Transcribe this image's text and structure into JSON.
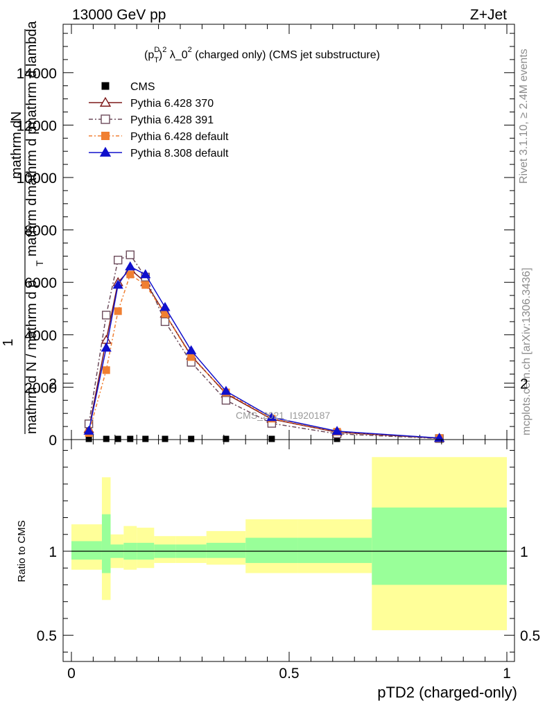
{
  "header": {
    "left": "13000 GeV pp",
    "right": "Z+Jet"
  },
  "side_labels": {
    "rivet": "Rivet 3.1.10, ≥ 2.4M events",
    "mcplots": "mcplots.cern.ch [arXiv:1306.3436]"
  },
  "watermark": "CMS_2021_I1920187",
  "chart_data": [
    {
      "type": "line",
      "title_parts": {
        "p": "(p",
        "sup_d": "D",
        "sub_t": "T",
        "close": ")",
        "sup_2": "2",
        "lambda": " λ_0",
        "sup_2b": "2",
        "rest": " (charged only) (CMS jet substructure)"
      },
      "ylabel_parts": {
        "one": "1",
        "denominator": "mathrm d N / mathrm d p",
        "t": "T",
        "rest": "mathrm d",
        "dn": "mathrm d",
        "n": "N",
        "dpt": "mathrm d p",
        "lambda": "mathrm d lambda"
      },
      "xlim": [
        0,
        1
      ],
      "ylim": [
        0,
        16000
      ],
      "yticks": [
        0,
        2000,
        4000,
        6000,
        8000,
        10000,
        12000,
        14000
      ],
      "ytick_labels": [
        "0",
        "2000",
        "4000",
        "6000",
        "8000",
        "10000",
        "12000",
        "14000"
      ],
      "legend_position": "top-left",
      "series": [
        {
          "name": "CMS",
          "color": "#000000",
          "marker": "square-filled",
          "x": [
            0.04,
            0.08,
            0.107,
            0.135,
            0.17,
            0.215,
            0.275,
            0.355,
            0.46,
            0.61,
            0.845
          ],
          "y": [
            0,
            0,
            0,
            0,
            0,
            0,
            0,
            0,
            0,
            0,
            0
          ]
        },
        {
          "name": "Pythia 6.428 370",
          "color": "#7d1818",
          "marker": "triangle-open",
          "dash": "",
          "x": [
            0.04,
            0.08,
            0.107,
            0.135,
            0.17,
            0.215,
            0.275,
            0.355,
            0.46,
            0.61,
            0.845
          ],
          "y": [
            400,
            3800,
            6000,
            6500,
            6000,
            4800,
            3200,
            1750,
            780,
            280,
            50
          ]
        },
        {
          "name": "Pythia 6.428 391",
          "color": "#6b4a5a",
          "marker": "square-open",
          "dash": "6,3,2,3",
          "x": [
            0.04,
            0.08,
            0.107,
            0.135,
            0.17,
            0.215,
            0.275,
            0.355,
            0.46,
            0.61,
            0.845
          ],
          "y": [
            600,
            4750,
            6850,
            7050,
            6200,
            4500,
            2950,
            1500,
            620,
            220,
            40
          ]
        },
        {
          "name": "Pythia 6.428 default",
          "color": "#f07f32",
          "marker": "square-filled",
          "dash": "5,3,2,3",
          "x": [
            0.04,
            0.08,
            0.107,
            0.135,
            0.17,
            0.215,
            0.275,
            0.355,
            0.46,
            0.61,
            0.845
          ],
          "y": [
            250,
            2650,
            4900,
            6300,
            5900,
            4800,
            3150,
            1800,
            800,
            300,
            60
          ]
        },
        {
          "name": "Pythia 8.308 default",
          "color": "#1010cc",
          "marker": "triangle-filled",
          "dash": "",
          "x": [
            0.04,
            0.08,
            0.107,
            0.135,
            0.17,
            0.215,
            0.275,
            0.355,
            0.46,
            0.61,
            0.845
          ],
          "y": [
            330,
            3500,
            5900,
            6600,
            6300,
            5050,
            3400,
            1850,
            850,
            320,
            60
          ]
        }
      ]
    },
    {
      "type": "area",
      "ylabel": "Ratio to CMS",
      "xlabel": "pTD2 (charged-only)",
      "xlim": [
        0,
        1
      ],
      "ylim": [
        0.35,
        2.3
      ],
      "yticks": [
        0.5,
        1,
        2
      ],
      "ytick_labels": [
        "0.5",
        "1",
        "2"
      ],
      "xticks": [
        0,
        0.5,
        1
      ],
      "xtick_labels": [
        "0",
        "0.5",
        "1"
      ],
      "reference_line": 1,
      "band_colors": {
        "inner": "#99ff99",
        "outer": "#ffff99"
      },
      "bins": [
        {
          "lo": 0.0,
          "hi": 0.07,
          "inner": [
            0.95,
            1.06
          ],
          "outer": [
            0.89,
            1.16
          ]
        },
        {
          "lo": 0.07,
          "hi": 0.09,
          "inner": [
            0.87,
            1.22
          ],
          "outer": [
            0.71,
            1.44
          ]
        },
        {
          "lo": 0.09,
          "hi": 0.12,
          "inner": [
            0.96,
            1.04
          ],
          "outer": [
            0.9,
            1.1
          ]
        },
        {
          "lo": 0.12,
          "hi": 0.15,
          "inner": [
            0.95,
            1.05
          ],
          "outer": [
            0.89,
            1.15
          ]
        },
        {
          "lo": 0.15,
          "hi": 0.19,
          "inner": [
            0.95,
            1.05
          ],
          "outer": [
            0.9,
            1.14
          ]
        },
        {
          "lo": 0.19,
          "hi": 0.24,
          "inner": [
            0.96,
            1.04
          ],
          "outer": [
            0.93,
            1.09
          ]
        },
        {
          "lo": 0.24,
          "hi": 0.31,
          "inner": [
            0.96,
            1.04
          ],
          "outer": [
            0.93,
            1.09
          ]
        },
        {
          "lo": 0.31,
          "hi": 0.4,
          "inner": [
            0.96,
            1.05
          ],
          "outer": [
            0.92,
            1.12
          ]
        },
        {
          "lo": 0.4,
          "hi": 0.52,
          "inner": [
            0.93,
            1.08
          ],
          "outer": [
            0.87,
            1.19
          ]
        },
        {
          "lo": 0.52,
          "hi": 0.69,
          "inner": [
            0.93,
            1.08
          ],
          "outer": [
            0.87,
            1.19
          ]
        },
        {
          "lo": 0.69,
          "hi": 1.0,
          "inner": [
            0.8,
            1.26
          ],
          "outer": [
            0.53,
            1.56
          ]
        }
      ]
    }
  ]
}
